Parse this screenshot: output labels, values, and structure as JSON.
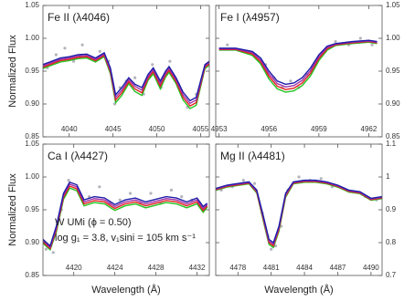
{
  "chart_data": [
    {
      "type": "line",
      "title": "Fe II (λ4046)",
      "ylabel": "Normalized Flux",
      "yaxis_side": "left",
      "xlim": [
        4037,
        4056
      ],
      "xticks": [
        4040,
        4045,
        4050,
        4055
      ],
      "ylim": [
        0.85,
        1.05
      ],
      "yticks": [
        0.85,
        {
          "value": 0.9,
          "label": "0.90"
        },
        0.95,
        {
          "value": 1,
          "label": "1.00"
        },
        1.05
      ],
      "x": [
        4037,
        4038,
        4039,
        4040,
        4041,
        4042,
        4043,
        4044,
        4044.7,
        4045.3,
        4046,
        4046.8,
        4047.5,
        4048.3,
        4049,
        4049.6,
        4050.4,
        4051,
        4051.4,
        4052.2,
        4053,
        4053.8,
        4054.5,
        4055,
        4055.5,
        4056
      ],
      "series": [
        {
          "color": "#22c422",
          "values": [
            0.954,
            0.959,
            0.964,
            0.966,
            0.969,
            0.97,
            0.964,
            0.972,
            0.946,
            0.902,
            0.913,
            0.931,
            0.919,
            0.913,
            0.936,
            0.946,
            0.923,
            0.941,
            0.948,
            0.931,
            0.906,
            0.893,
            0.898,
            0.926,
            0.954,
            0.959
          ]
        },
        {
          "color": "#e02020",
          "values": [
            0.956,
            0.961,
            0.966,
            0.968,
            0.971,
            0.972,
            0.966,
            0.974,
            0.949,
            0.906,
            0.917,
            0.934,
            0.923,
            0.917,
            0.939,
            0.949,
            0.927,
            0.944,
            0.951,
            0.934,
            0.91,
            0.897,
            0.902,
            0.929,
            0.956,
            0.961
          ]
        },
        {
          "color": "#a030a8",
          "values": [
            0.958,
            0.963,
            0.968,
            0.97,
            0.973,
            0.974,
            0.968,
            0.976,
            0.952,
            0.91,
            0.921,
            0.937,
            0.927,
            0.921,
            0.942,
            0.952,
            0.931,
            0.947,
            0.954,
            0.937,
            0.914,
            0.901,
            0.906,
            0.932,
            0.958,
            0.963
          ]
        },
        {
          "color": "#1c1ca8",
          "values": [
            0.96,
            0.965,
            0.97,
            0.972,
            0.975,
            0.976,
            0.97,
            0.978,
            0.955,
            0.914,
            0.925,
            0.94,
            0.93,
            0.925,
            0.945,
            0.955,
            0.935,
            0.95,
            0.957,
            0.94,
            0.918,
            0.905,
            0.91,
            0.935,
            0.96,
            0.965
          ]
        }
      ],
      "observed": {
        "color": "#b4b4bc",
        "x": [
          4037.5,
          4038.5,
          4039.5,
          4040.5,
          4041.5,
          4042.5,
          4043.5,
          4044.5,
          4045.2,
          4045.8,
          4046.5,
          4047.5,
          4048.5,
          4049.5,
          4050.5,
          4051.5,
          4052.5,
          4053.5,
          4054.5,
          4055.5
        ],
        "values": [
          0.955,
          0.975,
          0.985,
          0.965,
          0.99,
          0.97,
          0.98,
          0.965,
          0.9,
          0.925,
          0.935,
          0.94,
          0.915,
          0.96,
          0.925,
          0.965,
          0.93,
          0.895,
          0.915,
          0.955
        ]
      }
    },
    {
      "type": "line",
      "title": "Fe I (λ4957)",
      "yaxis_side": "right",
      "xlim": [
        4952.8,
        4962.8
      ],
      "xticks": [
        4953,
        4956,
        4959,
        4962
      ],
      "ylim": [
        0.85,
        1.05
      ],
      "yticks": [
        0.85,
        {
          "value": 0.9,
          "label": "0.90"
        },
        0.95,
        {
          "value": 1,
          "label": "1.00"
        },
        1.05
      ],
      "x": [
        4953,
        4954,
        4955,
        4955.5,
        4956,
        4956.5,
        4957,
        4957.5,
        4958,
        4958.5,
        4959,
        4959.5,
        4960,
        4961,
        4962,
        4962.5
      ],
      "series": [
        {
          "color": "#22c422",
          "values": [
            0.982,
            0.982,
            0.974,
            0.961,
            0.938,
            0.923,
            0.918,
            0.92,
            0.928,
            0.943,
            0.966,
            0.982,
            0.989,
            0.992,
            0.994,
            0.992
          ]
        },
        {
          "color": "#e02020",
          "values": [
            0.983,
            0.983,
            0.976,
            0.964,
            0.942,
            0.927,
            0.922,
            0.924,
            0.932,
            0.947,
            0.969,
            0.984,
            0.99,
            0.993,
            0.995,
            0.993
          ]
        },
        {
          "color": "#a030a8",
          "values": [
            0.984,
            0.984,
            0.978,
            0.967,
            0.946,
            0.931,
            0.926,
            0.928,
            0.936,
            0.951,
            0.972,
            0.986,
            0.991,
            0.994,
            0.996,
            0.994
          ]
        },
        {
          "color": "#1c1ca8",
          "values": [
            0.985,
            0.985,
            0.98,
            0.97,
            0.95,
            0.935,
            0.93,
            0.932,
            0.94,
            0.955,
            0.975,
            0.988,
            0.992,
            0.995,
            0.997,
            0.995
          ]
        }
      ],
      "observed": {
        "color": "#b4b4bc",
        "x": [
          4953.5,
          4954.5,
          4955.2,
          4955.8,
          4956.3,
          4956.8,
          4957.3,
          4957.8,
          4958.3,
          4958.8,
          4959.4,
          4960,
          4960.8,
          4961.5,
          4962.2
        ],
        "values": [
          0.99,
          0.98,
          0.975,
          0.96,
          0.94,
          0.925,
          0.935,
          0.925,
          0.945,
          0.96,
          0.98,
          0.995,
          0.99,
          1.0,
          0.99
        ]
      }
    },
    {
      "type": "line",
      "title": "Ca I (λ4427)",
      "ylabel": "Normalized Flux",
      "xlabel": "Wavelength (Å)",
      "yaxis_side": "left",
      "annotations": [
        "W UMi (ϕ = 0.50)",
        "log g₁ = 3.8, v₁sini = 105 km s⁻¹"
      ],
      "xlim": [
        4417,
        4433.2
      ],
      "xticks": [
        4420,
        4424,
        4428,
        4432
      ],
      "ylim": [
        0.85,
        1.05
      ],
      "yticks": [
        0.85,
        {
          "value": 0.9,
          "label": "0.90"
        },
        0.95,
        {
          "value": 1,
          "label": "1.00"
        },
        1.05
      ],
      "x": [
        4417,
        4417.7,
        4418.3,
        4419,
        4419.6,
        4420.3,
        4421,
        4422,
        4423,
        4424,
        4425,
        4426,
        4427,
        4428,
        4429,
        4430,
        4431,
        4432,
        4432.6,
        4433
      ],
      "series": [
        {
          "color": "#22c422",
          "values": [
            0.899,
            0.889,
            0.916,
            0.966,
            0.983,
            0.979,
            0.956,
            0.961,
            0.959,
            0.949,
            0.956,
            0.959,
            0.953,
            0.957,
            0.961,
            0.959,
            0.953,
            0.959,
            0.946,
            0.954
          ]
        },
        {
          "color": "#e02020",
          "values": [
            0.901,
            0.891,
            0.919,
            0.969,
            0.986,
            0.982,
            0.959,
            0.964,
            0.962,
            0.952,
            0.959,
            0.962,
            0.956,
            0.96,
            0.964,
            0.962,
            0.956,
            0.962,
            0.949,
            0.956
          ]
        },
        {
          "color": "#a030a8",
          "values": [
            0.903,
            0.893,
            0.922,
            0.972,
            0.989,
            0.985,
            0.962,
            0.967,
            0.965,
            0.955,
            0.962,
            0.965,
            0.959,
            0.963,
            0.967,
            0.965,
            0.959,
            0.965,
            0.952,
            0.958
          ]
        },
        {
          "color": "#1c1ca8",
          "values": [
            0.905,
            0.895,
            0.925,
            0.975,
            0.992,
            0.988,
            0.965,
            0.97,
            0.968,
            0.958,
            0.965,
            0.968,
            0.962,
            0.966,
            0.97,
            0.968,
            0.962,
            0.968,
            0.955,
            0.96
          ]
        }
      ],
      "observed": {
        "color": "#b4b4bc",
        "x": [
          4417.3,
          4418,
          4418.8,
          4419.5,
          4420.5,
          4421.5,
          4422.5,
          4423.5,
          4424.5,
          4425.5,
          4426.5,
          4427.5,
          4428.5,
          4429.5,
          4430.5,
          4431.5,
          4432.3,
          4432.9
        ],
        "values": [
          0.89,
          0.885,
          0.95,
          0.995,
          0.975,
          0.97,
          0.985,
          0.96,
          0.965,
          0.975,
          0.96,
          0.975,
          0.96,
          0.98,
          0.97,
          0.965,
          0.96,
          0.955
        ]
      }
    },
    {
      "type": "line",
      "title": "Mg II (λ4481)",
      "xlabel": "Wavelength (Å)",
      "yaxis_side": "right",
      "xlim": [
        4476,
        4491
      ],
      "xticks": [
        4478,
        4481,
        4484,
        4487,
        4490
      ],
      "ylim": [
        0.7,
        1.1
      ],
      "yticks": [
        0.7,
        0.8,
        0.9,
        1,
        1.1
      ],
      "x": [
        4476,
        4477,
        4478,
        4479,
        4479.7,
        4480.3,
        4480.8,
        4481.2,
        4481.7,
        4482.3,
        4483,
        4484,
        4485,
        4486,
        4487,
        4488,
        4489,
        4490,
        4491
      ],
      "series": [
        {
          "color": "#22c422",
          "values": [
            0.959,
            0.969,
            0.974,
            0.979,
            0.951,
            0.865,
            0.795,
            0.785,
            0.835,
            0.938,
            0.979,
            0.984,
            0.984,
            0.979,
            0.969,
            0.954,
            0.949,
            0.929,
            0.934
          ]
        },
        {
          "color": "#e02020",
          "values": [
            0.961,
            0.971,
            0.976,
            0.981,
            0.954,
            0.87,
            0.8,
            0.79,
            0.84,
            0.942,
            0.981,
            0.986,
            0.986,
            0.981,
            0.971,
            0.956,
            0.951,
            0.931,
            0.936
          ]
        },
        {
          "color": "#a030a8",
          "values": [
            0.963,
            0.973,
            0.978,
            0.983,
            0.957,
            0.875,
            0.805,
            0.795,
            0.845,
            0.946,
            0.983,
            0.988,
            0.988,
            0.983,
            0.973,
            0.958,
            0.953,
            0.933,
            0.938
          ]
        },
        {
          "color": "#1c1ca8",
          "values": [
            0.965,
            0.975,
            0.98,
            0.985,
            0.96,
            0.88,
            0.81,
            0.8,
            0.85,
            0.95,
            0.985,
            0.99,
            0.99,
            0.985,
            0.975,
            0.96,
            0.955,
            0.935,
            0.94
          ]
        }
      ],
      "observed": {
        "color": "#b4b4bc",
        "x": [
          4476.5,
          4477.5,
          4478.5,
          4479.5,
          4480.2,
          4480.7,
          4481,
          4481.4,
          4481.9,
          4482.5,
          4483.5,
          4484.5,
          4485.5,
          4486.5,
          4487.5,
          4488.5,
          4489.5,
          4490.5
        ],
        "values": [
          0.96,
          0.97,
          0.99,
          0.98,
          0.89,
          0.82,
          0.78,
          0.79,
          0.85,
          0.96,
          1.0,
          0.99,
          0.995,
          0.97,
          0.965,
          0.955,
          0.94,
          0.93
        ]
      }
    }
  ]
}
